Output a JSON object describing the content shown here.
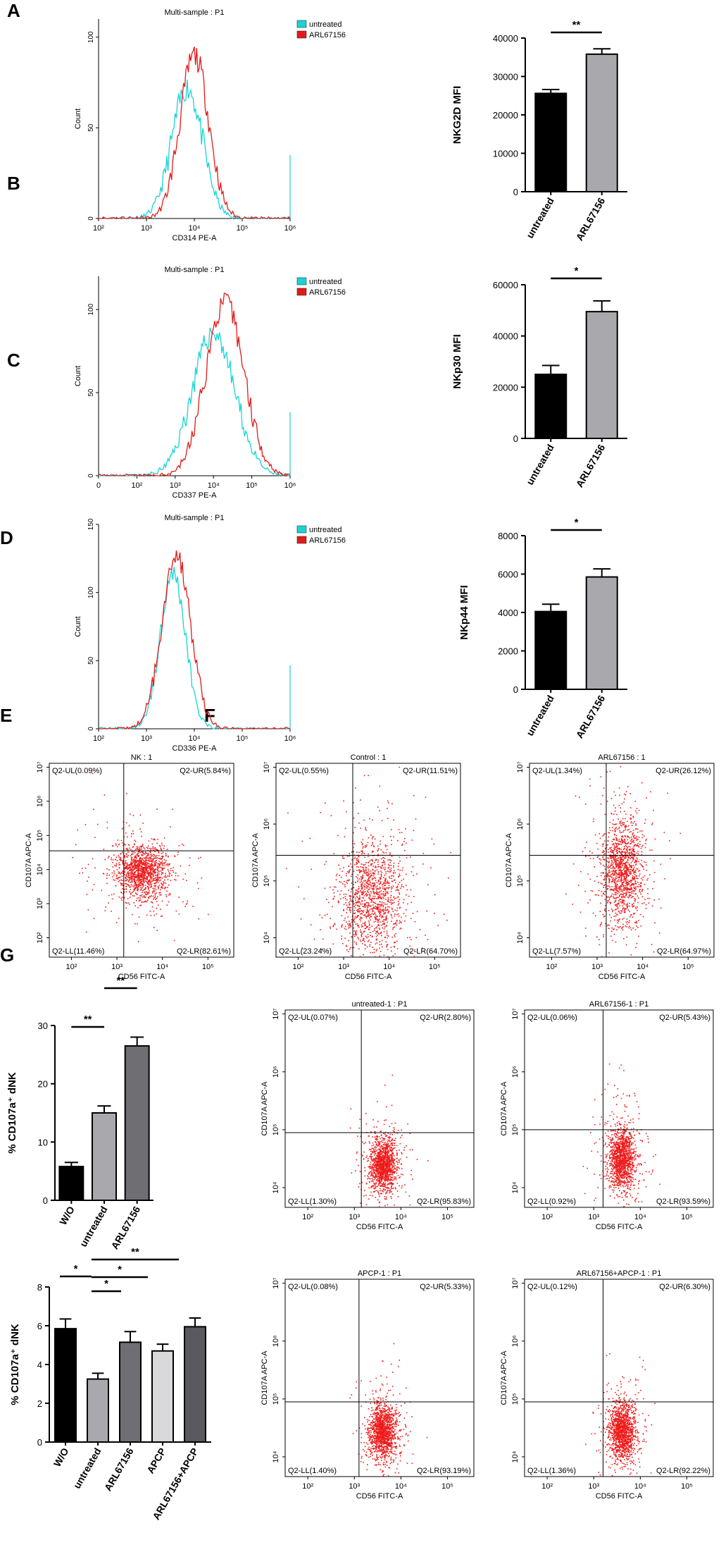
{
  "panel_letters": [
    "A",
    "B",
    "C",
    "D",
    "E",
    "F",
    "G"
  ],
  "colors": {
    "untreated": "#19d3d6",
    "arl": "#e21a1a",
    "dot": "#ee1b1b",
    "black": "#000000"
  },
  "chart_data": [
    {
      "id": "A_hist",
      "type": "line",
      "panel": "A",
      "title": "Multi-sample : P1",
      "xlabel": "CD314 PE-A",
      "ylabel": "Count",
      "x_ticks": [
        "10²",
        "10³",
        "10⁴",
        "10⁵",
        "10⁶"
      ],
      "x_log_range": [
        2,
        6
      ],
      "y_ticks": [
        0,
        50,
        100
      ],
      "ylim": [
        0,
        110
      ],
      "legend": [
        "untreated",
        "ARL67156"
      ],
      "series": [
        {
          "name": "untreated",
          "peak_log10": 3.85,
          "width": 0.32,
          "peak_count": 72
        },
        {
          "name": "ARL67156",
          "peak_log10": 4.0,
          "width": 0.3,
          "peak_count": 90
        }
      ]
    },
    {
      "id": "A_bar",
      "type": "bar",
      "panel": "A",
      "ylabel": "NKG2D MFI",
      "categories": [
        "untreated",
        "ARL67156"
      ],
      "values": [
        25600,
        35800
      ],
      "errors": [
        1000,
        1400
      ],
      "ylim": [
        0,
        40000
      ],
      "y_ticks": [
        0,
        10000,
        20000,
        30000,
        40000
      ],
      "significance": [
        {
          "from": 0,
          "to": 1,
          "label": "**"
        }
      ]
    },
    {
      "id": "B_hist",
      "type": "line",
      "panel": "B",
      "title": "Multi-sample : P1",
      "xlabel": "CD337 PE-A",
      "ylabel": "Count",
      "x_ticks": [
        "0",
        "10²",
        "10³",
        "10⁴",
        "10⁵",
        "10⁶"
      ],
      "y_ticks": [
        0,
        50,
        100
      ],
      "ylim": [
        0,
        120
      ],
      "legend": [
        "untreated",
        "ARL67156"
      ],
      "series": [
        {
          "name": "untreated",
          "peak_log10": 4.0,
          "width": 0.55,
          "peak_count": 86
        },
        {
          "name": "ARL67156",
          "peak_log10": 4.3,
          "width": 0.5,
          "peak_count": 104
        }
      ]
    },
    {
      "id": "B_bar",
      "type": "bar",
      "panel": "B",
      "ylabel": "NKp30 MFI",
      "categories": [
        "untreated",
        "ARL67156"
      ],
      "values": [
        25000,
        49500
      ],
      "errors": [
        3500,
        4200
      ],
      "ylim": [
        0,
        60000
      ],
      "y_ticks": [
        0,
        20000,
        40000,
        60000
      ],
      "significance": [
        {
          "from": 0,
          "to": 1,
          "label": "*"
        }
      ]
    },
    {
      "id": "C_hist",
      "type": "line",
      "panel": "C",
      "title": "Multi-sample : P1",
      "xlabel": "CD336 PE-A",
      "ylabel": "Count",
      "x_ticks": [
        "10²",
        "10³",
        "10⁴",
        "10⁵",
        "10⁶"
      ],
      "x_log_range": [
        2,
        6
      ],
      "y_ticks": [
        0,
        50,
        100,
        150
      ],
      "ylim": [
        0,
        150
      ],
      "legend": [
        "untreated",
        "ARL67156"
      ],
      "series": [
        {
          "name": "untreated",
          "peak_log10": 3.55,
          "width": 0.26,
          "peak_count": 115
        },
        {
          "name": "ARL67156",
          "peak_log10": 3.62,
          "width": 0.3,
          "peak_count": 128
        }
      ]
    },
    {
      "id": "C_bar",
      "type": "bar",
      "panel": "C",
      "ylabel": "NKp44 MFI",
      "categories": [
        "untreated",
        "ARL67156"
      ],
      "values": [
        4050,
        5850
      ],
      "errors": [
        380,
        420
      ],
      "ylim": [
        0,
        8000
      ],
      "y_ticks": [
        0,
        2000,
        4000,
        6000,
        8000
      ],
      "significance": [
        {
          "from": 0,
          "to": 1,
          "label": "*"
        }
      ]
    },
    {
      "id": "D1",
      "type": "scatter",
      "panel": "D",
      "title": "NK : 1",
      "xlabel": "CD56 FITC-A",
      "ylabel": "CD107A APC-A",
      "x_ticks": [
        "10²",
        "10³",
        "10⁴",
        "10⁵"
      ],
      "y_ticks": [
        "10²",
        "10³",
        "10⁴",
        "10⁵",
        "10⁶",
        "10⁷"
      ],
      "gate_log10": {
        "x": 3.15,
        "y": 4.55
      },
      "cloud_log10": {
        "x": 3.55,
        "y": 3.95,
        "sx": 0.28,
        "sy": 0.38
      },
      "quadrants": {
        "UL": "Q2-UL(0.09%)",
        "UR": "Q2-UR(5.84%)",
        "LL": "Q2-LL(11.46%)",
        "LR": "Q2-LR(82.61%)"
      }
    },
    {
      "id": "D2",
      "type": "scatter",
      "panel": "D",
      "title": "Control : 1",
      "xlabel": "CD56 FITC-A",
      "ylabel": "CD107A APC-A",
      "x_ticks": [
        "10²",
        "10³",
        "10⁴",
        "10⁵"
      ],
      "y_ticks": [
        "10⁴",
        "10⁵",
        "10⁶",
        "10⁷"
      ],
      "gate_log10": {
        "x": 3.2,
        "y": 5.45
      },
      "cloud_log10": {
        "x": 3.6,
        "y": 4.7,
        "sx": 0.35,
        "sy": 0.5
      },
      "quadrants": {
        "UL": "Q2-UL(0.55%)",
        "UR": "Q2-UR(11.51%)",
        "LL": "Q2-LL(23.24%)",
        "LR": "Q2-LR(64.70%)"
      }
    },
    {
      "id": "D3",
      "type": "scatter",
      "panel": "D",
      "title": "ARL67156 : 1",
      "xlabel": "CD56 FITC-A",
      "ylabel": "CD107A APC-A",
      "x_ticks": [
        "10²",
        "10³",
        "10⁴",
        "10⁵"
      ],
      "y_ticks": [
        "10⁴",
        "10⁵",
        "10⁶",
        "10⁷"
      ],
      "gate_log10": {
        "x": 3.2,
        "y": 5.45
      },
      "cloud_log10": {
        "x": 3.55,
        "y": 5.2,
        "sx": 0.22,
        "sy": 0.45
      },
      "quadrants": {
        "UL": "Q2-UL(1.34%)",
        "UR": "Q2-UR(26.12%)",
        "LL": "Q2-LL(7.57%)",
        "LR": "Q2-LR(64.97%)"
      }
    },
    {
      "id": "E_bar",
      "type": "bar",
      "panel": "E",
      "ylabel": "% CD107a⁺ dNK",
      "categories": [
        "W/O",
        "untreated",
        "ARL67156"
      ],
      "values": [
        5.8,
        15.0,
        26.5
      ],
      "errors": [
        0.7,
        1.2,
        1.5
      ],
      "ylim": [
        0,
        30
      ],
      "y_ticks": [
        0,
        10,
        20,
        30
      ],
      "significance": [
        {
          "from": 0,
          "to": 1,
          "label": "**"
        },
        {
          "from": 1,
          "to": 2,
          "label": "**"
        }
      ]
    },
    {
      "id": "F1",
      "type": "scatter",
      "panel": "F",
      "title": "untreated-1 : P1",
      "xlabel": "CD56 FITC-A",
      "ylabel": "CD107A APC-A",
      "x_ticks": [
        "10²",
        "10³",
        "10⁴",
        "10⁵"
      ],
      "y_ticks": [
        "10⁴",
        "10⁵",
        "10⁶",
        "10⁷"
      ],
      "gate_log10": {
        "x": 3.15,
        "y": 4.95
      },
      "cloud_log10": {
        "x": 3.6,
        "y": 4.4,
        "sx": 0.14,
        "sy": 0.22
      },
      "quadrants": {
        "UL": "Q2-UL(0.07%)",
        "UR": "Q2-UR(2.80%)",
        "LL": "Q2-LL(1.30%)",
        "LR": "Q2-LR(95.83%)"
      }
    },
    {
      "id": "F2",
      "type": "scatter",
      "panel": "F",
      "title": "ARL67156-1 : P1",
      "xlabel": "CD56 FITC-A",
      "ylabel": "CD107A APC-A",
      "x_ticks": [
        "10²",
        "10³",
        "10⁴",
        "10⁵"
      ],
      "y_ticks": [
        "10⁴",
        "10⁵",
        "10⁶",
        "10⁷"
      ],
      "gate_log10": {
        "x": 3.2,
        "y": 5.0
      },
      "cloud_log10": {
        "x": 3.6,
        "y": 4.5,
        "sx": 0.14,
        "sy": 0.26
      },
      "quadrants": {
        "UL": "Q2-UL(0.06%)",
        "UR": "Q2-UR(5.43%)",
        "LL": "Q2-LL(0.92%)",
        "LR": "Q2-LR(93.59%)"
      }
    },
    {
      "id": "F3",
      "type": "scatter",
      "panel": "F",
      "title": "APCP-1 : P1",
      "xlabel": "CD56 FITC-A",
      "ylabel": "CD107A APC-A",
      "x_ticks": [
        "10²",
        "10³",
        "10⁴",
        "10⁵"
      ],
      "y_ticks": [
        "10⁴",
        "10⁵",
        "10⁶",
        "10⁷"
      ],
      "gate_log10": {
        "x": 3.1,
        "y": 4.95
      },
      "cloud_log10": {
        "x": 3.6,
        "y": 4.45,
        "sx": 0.14,
        "sy": 0.22
      },
      "quadrants": {
        "UL": "Q2-UL(0.08%)",
        "UR": "Q2-UR(5.33%)",
        "LL": "Q2-LL(1.40%)",
        "LR": "Q2-LR(93.19%)"
      }
    },
    {
      "id": "F4",
      "type": "scatter",
      "panel": "F",
      "title": "ARL67156+APCP-1 : P1",
      "xlabel": "CD56 FITC-A",
      "ylabel": "CD107A APC-A",
      "x_ticks": [
        "10²",
        "10³",
        "10⁴",
        "10⁵"
      ],
      "y_ticks": [
        "10⁴",
        "10⁵",
        "10⁶",
        "10⁷"
      ],
      "gate_log10": {
        "x": 3.2,
        "y": 4.95
      },
      "cloud_log10": {
        "x": 3.6,
        "y": 4.45,
        "sx": 0.14,
        "sy": 0.24
      },
      "quadrants": {
        "UL": "Q2-UL(0.12%)",
        "UR": "Q2-UR(6.30%)",
        "LL": "Q2-LL(1.36%)",
        "LR": "Q2-LR(92.22%)"
      }
    },
    {
      "id": "G_bar",
      "type": "bar",
      "panel": "G",
      "ylabel": "% CD107a⁺ dNK",
      "categories": [
        "W/O",
        "untreated",
        "ARL67156",
        "APCP",
        "ARL67156+APCP"
      ],
      "values": [
        5.85,
        3.25,
        5.15,
        4.7,
        5.95
      ],
      "errors": [
        0.5,
        0.3,
        0.55,
        0.35,
        0.45
      ],
      "ylim": [
        0,
        8
      ],
      "y_ticks": [
        0,
        2,
        4,
        6,
        8
      ],
      "significance": [
        {
          "from": 0,
          "to": 1,
          "label": "*"
        },
        {
          "from": 1,
          "to": 2,
          "label": "*"
        },
        {
          "from": 1,
          "to": 3,
          "label": "*"
        },
        {
          "from": 1,
          "to": 4,
          "label": "**"
        }
      ]
    }
  ]
}
